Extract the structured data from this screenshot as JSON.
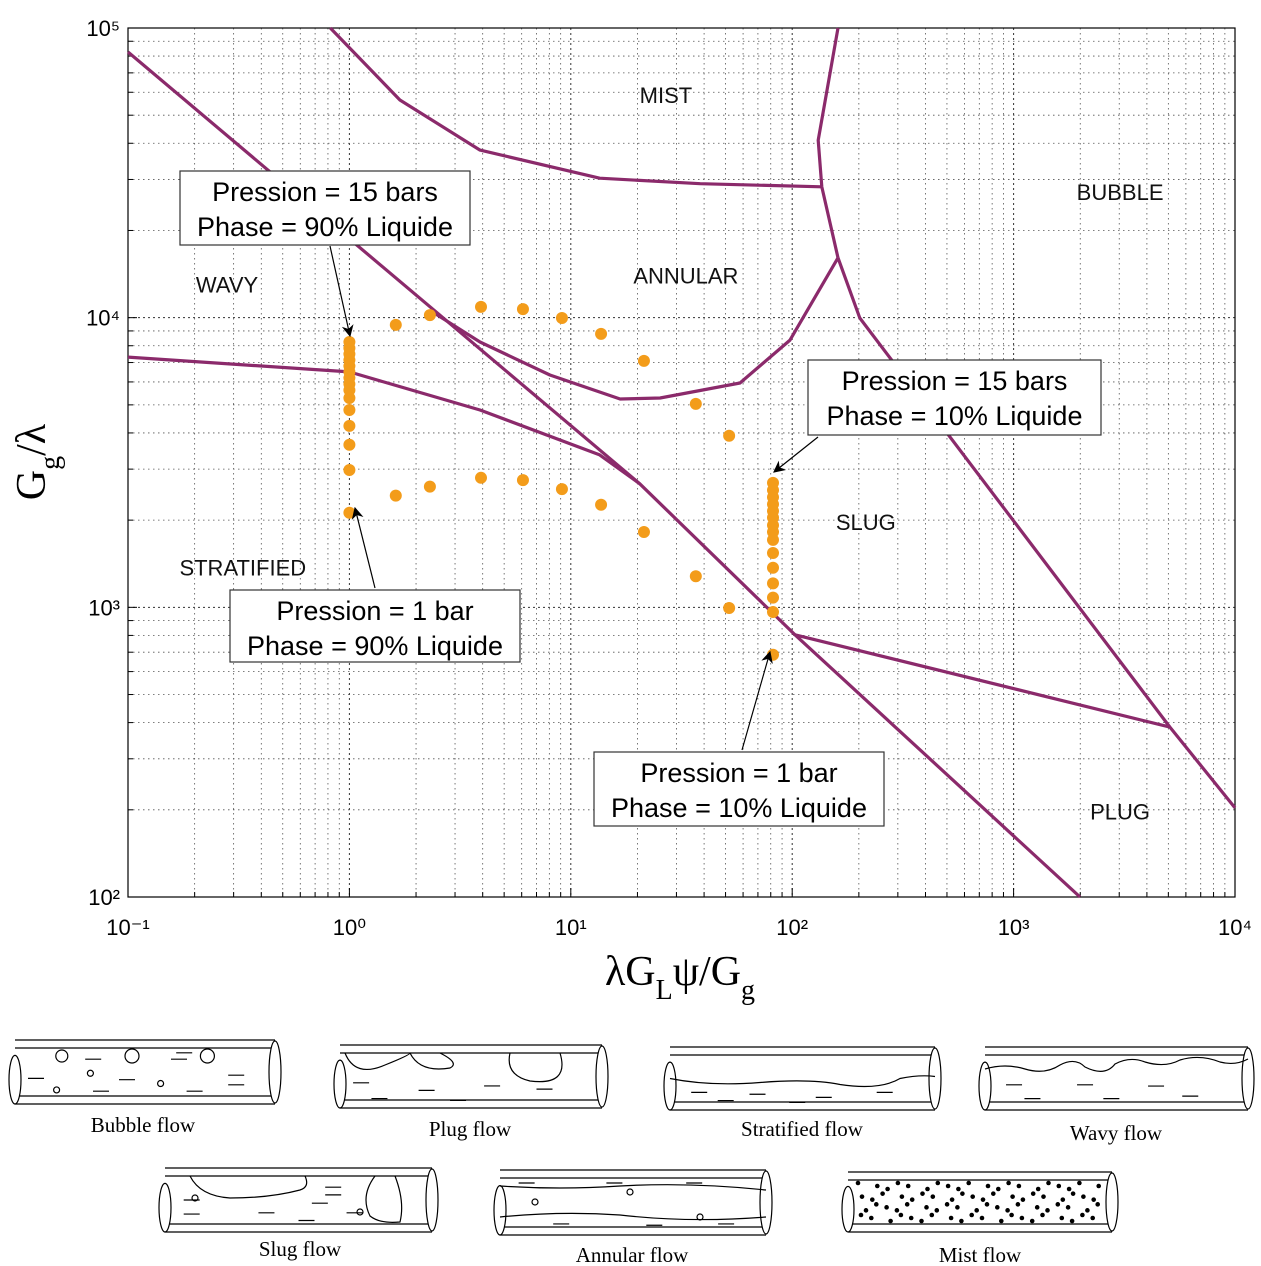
{
  "chart_data": {
    "type": "line",
    "xlabel": [
      "λG",
      "L",
      "ψ/G",
      "g"
    ],
    "ylabel": [
      "G",
      "g",
      "/λ"
    ],
    "log_x": true,
    "log_y": true,
    "grid": true,
    "xlim": [
      0.1,
      10000
    ],
    "ylim": [
      100,
      100000
    ],
    "xticks": [
      {
        "value": 0.1,
        "label": "10⁻¹"
      },
      {
        "value": 1,
        "label": "10⁰"
      },
      {
        "value": 10,
        "label": "10¹"
      },
      {
        "value": 100,
        "label": "10²"
      },
      {
        "value": 1000,
        "label": "10³"
      },
      {
        "value": 10000,
        "label": "10⁴"
      }
    ],
    "yticks": [
      {
        "value": 100,
        "label": "10²"
      },
      {
        "value": 1000,
        "label": "10³"
      },
      {
        "value": 10000,
        "label": "10⁴"
      },
      {
        "value": 100000,
        "label": "10⁵"
      }
    ],
    "xminorticks": [
      0.2,
      0.3,
      0.4,
      0.5,
      0.6,
      0.7,
      0.8,
      0.9,
      2,
      3,
      4,
      5,
      6,
      7,
      8,
      9,
      20,
      30,
      40,
      50,
      60,
      70,
      80,
      90,
      200,
      300,
      400,
      500,
      600,
      700,
      800,
      900,
      2000,
      3000,
      4000,
      5000,
      6000,
      7000,
      8000,
      9000
    ],
    "yminorticks": [
      200,
      300,
      400,
      500,
      600,
      700,
      800,
      900,
      2000,
      3000,
      4000,
      5000,
      6000,
      7000,
      8000,
      9000,
      20000,
      30000,
      40000,
      50000,
      60000,
      70000,
      80000,
      90000
    ],
    "series": [
      {
        "color": "#8b2a6b",
        "x": [
          0.1,
          20.5,
          103,
          1995
        ],
        "values": [
          82600,
          2670,
          804,
          100
        ]
      },
      {
        "color": "#8b2a6b",
        "x": [
          0.1,
          1,
          3.89,
          13.5,
          20.5
        ],
        "values": [
          7310,
          6500,
          4800,
          3360,
          2670
        ]
      },
      {
        "color": "#8b2a6b",
        "x": [
          103,
          5080
        ],
        "values": [
          804,
          386
        ]
      },
      {
        "color": "#8b2a6b",
        "x": [
          161,
          202,
          5080,
          10000
        ],
        "values": [
          16100,
          9970,
          386,
          203
        ]
      },
      {
        "color": "#8b2a6b",
        "x": [
          2.31,
          3.89,
          8.05,
          16.7,
          25.3,
          58.1,
          97.7,
          161
        ],
        "values": [
          10600,
          8240,
          6340,
          5240,
          5280,
          5950,
          8370,
          16100
        ]
      },
      {
        "color": "#8b2a6b",
        "x": [
          0.82,
          1.69,
          3.89,
          13.5,
          38.4,
          136
        ],
        "values": [
          100000,
          56400,
          37900,
          30300,
          29000,
          28300
        ]
      },
      {
        "color": "#8b2a6b",
        "x": [
          161,
          131,
          136,
          161
        ],
        "values": [
          100000,
          41000,
          28300,
          16100
        ]
      }
    ],
    "scatter": {
      "color": "#f39c1a",
      "x": [
        1,
        1,
        1,
        1,
        1,
        1,
        1,
        1,
        1,
        1,
        1,
        1,
        1,
        1,
        1,
        1.62,
        2.31,
        3.93,
        6.08,
        9.12,
        13.7,
        21.4,
        36.7,
        51.9,
        1.62,
        2.31,
        3.93,
        6.08,
        9.12,
        13.7,
        21.4,
        36.7,
        51.9,
        81.9,
        81.9,
        81.9,
        81.9,
        81.9,
        81.9,
        81.9,
        81.9,
        81.9,
        81.9,
        81.9,
        81.9,
        81.9,
        81.9,
        81.9
      ],
      "values": [
        8240,
        7850,
        7490,
        7140,
        6810,
        6500,
        6190,
        5900,
        5620,
        5280,
        4800,
        4230,
        3640,
        2980,
        2120,
        9440,
        10200,
        10900,
        10700,
        9970,
        8790,
        7090,
        5040,
        3910,
        2430,
        2610,
        2800,
        2750,
        2560,
        2260,
        1820,
        1280,
        995,
        2690,
        2540,
        2400,
        2270,
        2150,
        2040,
        1920,
        1820,
        1710,
        1540,
        1370,
        1210,
        1080,
        964,
        686
      ]
    },
    "regions": [
      {
        "label": "MIST",
        "x": 26.9,
        "y": 58700
      },
      {
        "label": "BUBBLE",
        "x": 3027,
        "y": 27200
      },
      {
        "label": "WAVY",
        "x": 0.28,
        "y": 13000
      },
      {
        "label": "ANNULAR",
        "x": 33.1,
        "y": 14000
      },
      {
        "label": "SLUG",
        "x": 215,
        "y": 1970
      },
      {
        "label": "STRATIFIED",
        "x": 0.33,
        "y": 1370
      },
      {
        "label": "PLUG",
        "x": 3027,
        "y": 197
      }
    ],
    "callouts": [
      {
        "lines": [
          "Pression = 15 bars",
          "Phase = 90% Liquide"
        ]
      },
      {
        "lines": [
          "Pression = 15 bars",
          "Phase = 10% Liquide"
        ]
      },
      {
        "lines": [
          "Pression = 1 bar",
          "Phase = 90% Liquide"
        ]
      },
      {
        "lines": [
          "Pression = 1 bar",
          "Phase = 10% Liquide"
        ]
      }
    ]
  },
  "flow_regimes": [
    {
      "label": "Bubble flow"
    },
    {
      "label": "Plug flow"
    },
    {
      "label": "Stratified flow"
    },
    {
      "label": "Wavy flow"
    },
    {
      "label": "Slug flow"
    },
    {
      "label": "Annular flow"
    },
    {
      "label": "Mist flow"
    }
  ]
}
